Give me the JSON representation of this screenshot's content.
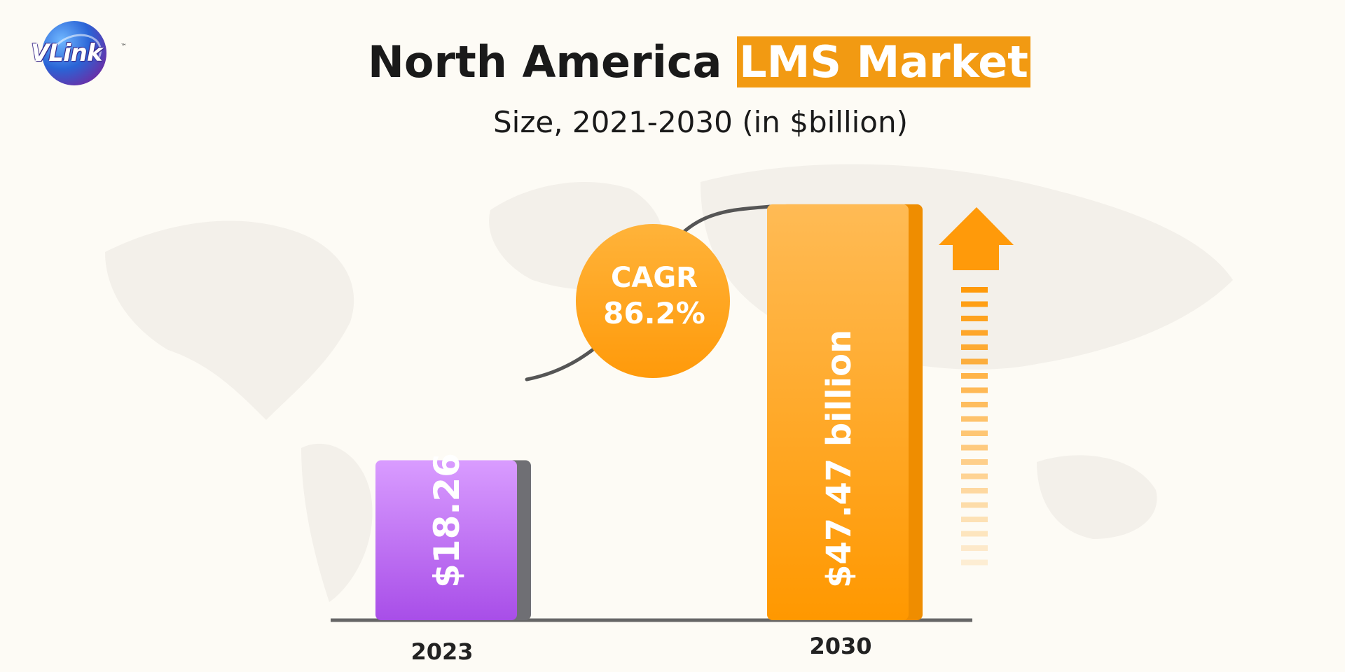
{
  "brand": {
    "logo_text": "VLink",
    "trademark": "™"
  },
  "header": {
    "title_main": "North America",
    "title_highlight": "LMS Market",
    "subtitle": "Size, 2021-2030 (in $billion)"
  },
  "callout": {
    "line1": "CAGR",
    "line2": "86.2%"
  },
  "colors": {
    "accent": "#f29a12",
    "bar_2023_top": "#d99cff",
    "bar_2023_bottom": "#a84ee8",
    "bar_2030_top": "#ffbb55",
    "bar_2030_bottom": "#ff9800",
    "axis": "#666666"
  },
  "icons": [
    "globe-logo-icon",
    "up-arrow-icon"
  ],
  "chart_data": {
    "type": "bar",
    "categories": [
      "2023",
      "2030"
    ],
    "values": [
      18.26,
      47.47
    ],
    "value_labels": [
      "$18.26",
      "$47.47 billion"
    ],
    "title": "North America LMS Market",
    "subtitle": "Size, 2021-2030 (in $billion)",
    "xlabel": "",
    "ylabel": "",
    "ylim": [
      0,
      48.9
    ],
    "grid": false,
    "legend": "none",
    "annotations": [
      "CAGR 86.2%"
    ]
  }
}
